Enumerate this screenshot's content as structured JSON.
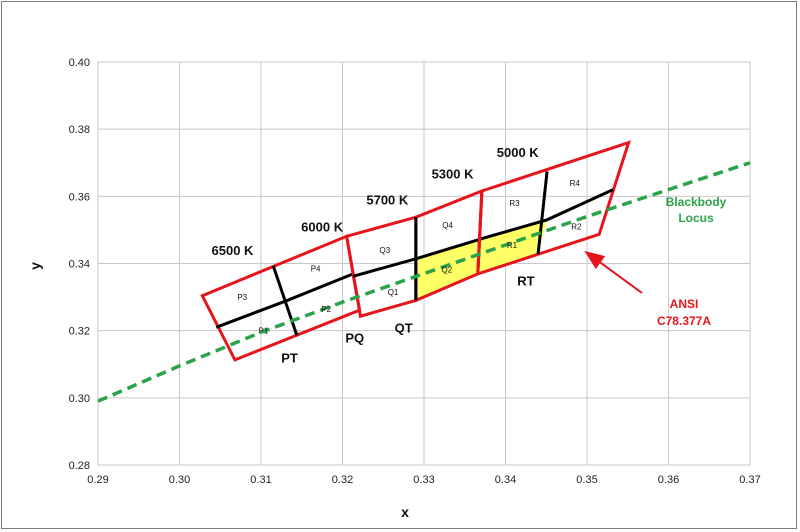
{
  "chart_data": {
    "type": "line",
    "xlabel": "x",
    "ylabel": "y",
    "xlim": [
      0.29,
      0.37
    ],
    "ylim": [
      0.28,
      0.4
    ],
    "x_ticks": [
      "0.29",
      "0.30",
      "0.31",
      "0.32",
      "0.33",
      "0.34",
      "0.35",
      "0.36",
      "0.37"
    ],
    "y_ticks": [
      "0.28",
      "0.30",
      "0.32",
      "0.34",
      "0.36",
      "0.38",
      "0.40"
    ],
    "grid": true,
    "colors": {
      "quad": "#e8141c",
      "locus": "#2aa34a",
      "highlight": "#ffff66",
      "divider": "#000000"
    },
    "locus": {
      "label_line1": "Blackbody",
      "label_line2": "Locus",
      "x": [
        0.29,
        0.3,
        0.31,
        0.32,
        0.33,
        0.34,
        0.35,
        0.36,
        0.37
      ],
      "y": [
        0.299,
        0.3095,
        0.3195,
        0.3285,
        0.337,
        0.3455,
        0.354,
        0.362,
        0.37
      ]
    },
    "quadrangles": [
      {
        "name": "PT",
        "label": "PT",
        "label_at": [
          0.3135,
          0.3105
        ],
        "corners": [
          [
            0.3028,
            0.3304
          ],
          [
            0.3115,
            0.3393
          ],
          [
            0.3205,
            0.3481
          ],
          [
            0.3068,
            0.3113
          ],
          [
            0.3144,
            0.3186
          ],
          [
            0.3221,
            0.3261
          ]
        ]
      },
      {
        "name": "PQ",
        "label": "PQ",
        "label_at": [
          0.3215,
          0.3165
        ],
        "corners": [
          [
            0.3205,
            0.3481
          ],
          [
            0.329,
            0.3538
          ],
          [
            0.3222,
            0.3243
          ],
          [
            0.329,
            0.329
          ]
        ]
      },
      {
        "name": "QT",
        "label": "QT",
        "label_at": [
          0.3275,
          0.3195
        ],
        "corners": [
          [
            0.329,
            0.3538
          ],
          [
            0.3371,
            0.3616
          ],
          [
            0.329,
            0.329
          ],
          [
            0.3366,
            0.3369
          ]
        ]
      },
      {
        "name": "RT",
        "label": "RT",
        "label_at": [
          0.3425,
          0.3335
        ],
        "corners": [
          [
            0.3371,
            0.3616
          ],
          [
            0.3451,
            0.3674
          ],
          [
            0.3551,
            0.376
          ],
          [
            0.3366,
            0.3369
          ],
          [
            0.344,
            0.3428
          ],
          [
            0.3515,
            0.3487
          ]
        ]
      }
    ],
    "temperatures": [
      {
        "label": "6500 K",
        "x": 0.3065,
        "y": 0.3425
      },
      {
        "label": "6000 K",
        "x": 0.3175,
        "y": 0.3495
      },
      {
        "label": "5700 K",
        "x": 0.3255,
        "y": 0.3575
      },
      {
        "label": "5300 K",
        "x": 0.3335,
        "y": 0.3653
      },
      {
        "label": "5000 K",
        "x": 0.3415,
        "y": 0.3717
      }
    ],
    "bins": [
      {
        "label": "P3",
        "x": 0.3077,
        "y": 0.33
      },
      {
        "label": "P4",
        "x": 0.3167,
        "y": 0.3385
      },
      {
        "label": "P2",
        "x": 0.318,
        "y": 0.3265
      },
      {
        "label": "P1",
        "x": 0.3103,
        "y": 0.32
      },
      {
        "label": "Q3",
        "x": 0.3252,
        "y": 0.344
      },
      {
        "label": "Q1",
        "x": 0.3262,
        "y": 0.3315
      },
      {
        "label": "Q4",
        "x": 0.3329,
        "y": 0.3515
      },
      {
        "label": "Q2",
        "x": 0.3328,
        "y": 0.3382
      },
      {
        "label": "R3",
        "x": 0.3411,
        "y": 0.358
      },
      {
        "label": "R1",
        "x": 0.3408,
        "y": 0.3455
      },
      {
        "label": "R4",
        "x": 0.3485,
        "y": 0.364
      },
      {
        "label": "R2",
        "x": 0.3487,
        "y": 0.351
      }
    ],
    "highlighted": [
      "Q2",
      "R1"
    ],
    "annotation": {
      "line1": "ANSI",
      "line2": "C78.377A",
      "color": "#e8141c"
    }
  }
}
